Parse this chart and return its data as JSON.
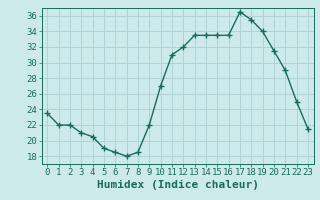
{
  "x": [
    0,
    1,
    2,
    3,
    4,
    5,
    6,
    7,
    8,
    9,
    10,
    11,
    12,
    13,
    14,
    15,
    16,
    17,
    18,
    19,
    20,
    21,
    22,
    23
  ],
  "y": [
    23.5,
    22.0,
    22.0,
    21.0,
    20.5,
    19.0,
    18.5,
    18.0,
    18.5,
    22.0,
    27.0,
    31.0,
    32.0,
    33.5,
    33.5,
    33.5,
    33.5,
    36.5,
    35.5,
    34.0,
    31.5,
    29.0,
    25.0,
    21.5
  ],
  "line_color": "#1a6b5a",
  "marker": "s",
  "markersize": 2,
  "bg_color": "#cdeaea",
  "grid_color": "#b0d4d4",
  "xlabel": "Humidex (Indice chaleur)",
  "ylim": [
    17,
    37
  ],
  "xlim": [
    -0.5,
    23.5
  ],
  "yticks": [
    18,
    20,
    22,
    24,
    26,
    28,
    30,
    32,
    34,
    36
  ],
  "xticks": [
    0,
    1,
    2,
    3,
    4,
    5,
    6,
    7,
    8,
    9,
    10,
    11,
    12,
    13,
    14,
    15,
    16,
    17,
    18,
    19,
    20,
    21,
    22,
    23
  ],
  "tick_label_fontsize": 6.5,
  "xlabel_fontsize": 8
}
